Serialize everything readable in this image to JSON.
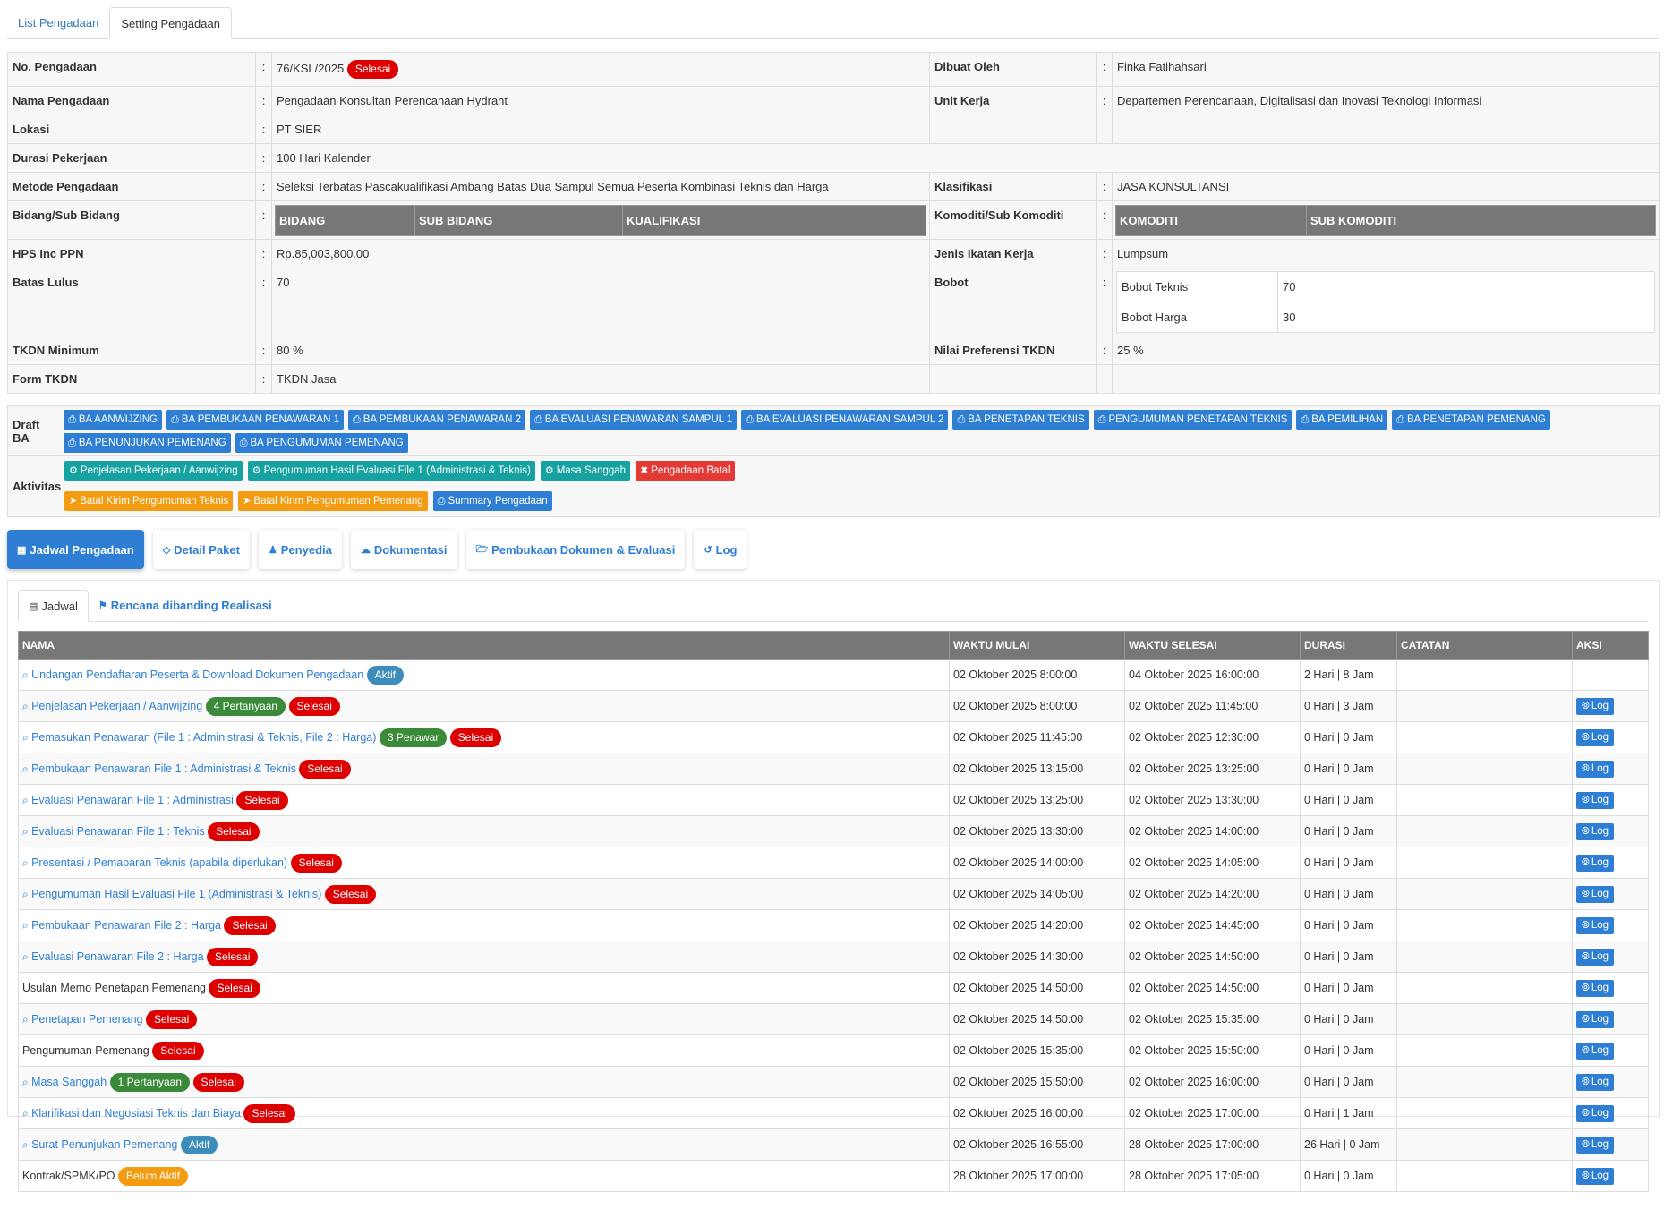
{
  "top_tabs": [
    "List Pengadaan",
    "Setting Pengadaan"
  ],
  "info": {
    "no_label": "No. Pengadaan",
    "no_value": "76/KSL/2025",
    "no_status": "Selesai",
    "dibuat_label": "Dibuat Oleh",
    "dibuat_value": "Finka Fatihahsari",
    "nama_label": "Nama Pengadaan",
    "nama_value": "Pengadaan Konsultan Perencanaan Hydrant",
    "unit_label": "Unit Kerja",
    "unit_value": "Departemen Perencanaan, Digitalisasi dan Inovasi Teknologi Informasi",
    "lokasi_label": "Lokasi",
    "lokasi_value": "PT SIER",
    "durasi_label": "Durasi Pekerjaan",
    "durasi_value": "100 Hari Kalender",
    "metode_label": "Metode Pengadaan",
    "metode_value": "Seleksi Terbatas Pascakualifikasi Ambang Batas Dua Sampul Semua Peserta Kombinasi Teknis dan Harga",
    "klasifikasi_label": "Klasifikasi",
    "klasifikasi_value": "JASA KONSULTANSI",
    "bidang_label": "Bidang/Sub Bidang",
    "bidang_cols": [
      "BIDANG",
      "SUB BIDANG",
      "KUALIFIKASI"
    ],
    "komoditi_label": "Komoditi/Sub Komoditi",
    "komoditi_cols": [
      "KOMODITI",
      "SUB KOMODITI"
    ],
    "hps_label": "HPS Inc PPN",
    "hps_value": "Rp.85,003,800.00",
    "ikatan_label": "Jenis Ikatan Kerja",
    "ikatan_value": "Lumpsum",
    "batas_label": "Batas Lulus",
    "batas_value": "70",
    "bobot_label": "Bobot",
    "bobot_teknis_label": "Bobot Teknis",
    "bobot_teknis_value": "70",
    "bobot_harga_label": "Bobot Harga",
    "bobot_harga_value": "30",
    "tkdn_min_label": "TKDN Minimum",
    "tkdn_min_value": "80 %",
    "preferensi_label": "Nilai Preferensi TKDN",
    "preferensi_value": "25 %",
    "form_tkdn_label": "Form TKDN",
    "form_tkdn_value": "TKDN Jasa",
    "colon": ":"
  },
  "draft_ba": {
    "label": "Draft BA",
    "buttons": [
      "BA AANWIJZING",
      "BA PEMBUKAAN PENAWARAN 1",
      "BA PEMBUKAAN PENAWARAN 2",
      "BA EVALUASI PENAWARAN SAMPUL 1",
      "BA EVALUASI PENAWARAN SAMPUL 2",
      "BA PENETAPAN TEKNIS",
      "PENGUMUMAN PENETAPAN TEKNIS",
      "BA PEMILIHAN",
      "BA PENETAPAN PEMENANG",
      "BA PENUNJUKAN PEMENANG",
      "BA PENGUMUMAN PEMENANG"
    ]
  },
  "aktivitas": {
    "label": "Aktivitas",
    "buttons": [
      {
        "label": "Penjelasan Pekerjaan / Aanwijzing",
        "color": "teal"
      },
      {
        "label": "Pengumuman Hasil Evaluasi File 1 (Administrasi & Teknis)",
        "color": "teal"
      },
      {
        "label": "Masa Sanggah",
        "color": "teal"
      },
      {
        "label": "Pengadaan Batal",
        "color": "red"
      },
      {
        "label": "Batal Kirim Pengumuman Teknis",
        "color": "orange"
      },
      {
        "label": "Batal Kirim Pengumuman Pemenang",
        "color": "orange"
      },
      {
        "label": "Summary Pengadaan",
        "color": "blue"
      }
    ]
  },
  "section_tabs": [
    "Jadwal Pengadaan",
    "Detail Paket",
    "Penyedia",
    "Dokumentasi",
    "Pembukaan Dokumen & Evaluasi",
    "Log"
  ],
  "sub_tabs": [
    "Jadwal",
    "Rencana dibanding Realisasi"
  ],
  "schedule": {
    "headers": [
      "NAMA",
      "WAKTU MULAI",
      "WAKTU SELESAI",
      "DURASI",
      "CATATAN",
      "AKSI"
    ],
    "log_label": "Log",
    "rows": [
      {
        "name": "Undangan Pendaftaran Peserta & Download Dokumen Pengadaan",
        "link": true,
        "badges": [
          {
            "text": "Aktif",
            "color": "blue"
          }
        ],
        "start": "02 Oktober 2025 8:00:00",
        "end": "04 Oktober 2025 16:00:00",
        "dur": "2 Hari | 8 Jam",
        "log": false
      },
      {
        "name": "Penjelasan Pekerjaan / Aanwijzing",
        "link": true,
        "badges": [
          {
            "text": "4 Pertanyaan",
            "color": "green"
          },
          {
            "text": "Selesai",
            "color": "red"
          }
        ],
        "start": "02 Oktober 2025 8:00:00",
        "end": "02 Oktober 2025 11:45:00",
        "dur": "0 Hari | 3 Jam",
        "log": true
      },
      {
        "name": "Pemasukan Penawaran (File 1 : Administrasi & Teknis, File 2 : Harga)",
        "link": true,
        "badges": [
          {
            "text": "3 Penawar",
            "color": "green"
          },
          {
            "text": "Selesai",
            "color": "red"
          }
        ],
        "start": "02 Oktober 2025 11:45:00",
        "end": "02 Oktober 2025 12:30:00",
        "dur": "0 Hari | 0 Jam",
        "log": true
      },
      {
        "name": "Pembukaan Penawaran File 1 : Administrasi & Teknis",
        "link": true,
        "badges": [
          {
            "text": "Selesai",
            "color": "red"
          }
        ],
        "start": "02 Oktober 2025 13:15:00",
        "end": "02 Oktober 2025 13:25:00",
        "dur": "0 Hari | 0 Jam",
        "log": true
      },
      {
        "name": "Evaluasi Penawaran File 1 : Administrasi",
        "link": true,
        "badges": [
          {
            "text": "Selesai",
            "color": "red"
          }
        ],
        "start": "02 Oktober 2025 13:25:00",
        "end": "02 Oktober 2025 13:30:00",
        "dur": "0 Hari | 0 Jam",
        "log": true
      },
      {
        "name": "Evaluasi Penawaran File 1 : Teknis",
        "link": true,
        "badges": [
          {
            "text": "Selesai",
            "color": "red"
          }
        ],
        "start": "02 Oktober 2025 13:30:00",
        "end": "02 Oktober 2025 14:00:00",
        "dur": "0 Hari | 0 Jam",
        "log": true
      },
      {
        "name": "Presentasi / Pemaparan Teknis (apabila diperlukan)",
        "link": true,
        "badges": [
          {
            "text": "Selesai",
            "color": "red"
          }
        ],
        "start": "02 Oktober 2025 14:00:00",
        "end": "02 Oktober 2025 14:05:00",
        "dur": "0 Hari | 0 Jam",
        "log": true
      },
      {
        "name": "Pengumuman Hasil Evaluasi File 1 (Administrasi & Teknis)",
        "link": true,
        "badges": [
          {
            "text": "Selesai",
            "color": "red"
          }
        ],
        "start": "02 Oktober 2025 14:05:00",
        "end": "02 Oktober 2025 14:20:00",
        "dur": "0 Hari | 0 Jam",
        "log": true
      },
      {
        "name": "Pembukaan Penawaran File 2 : Harga",
        "link": true,
        "badges": [
          {
            "text": "Selesai",
            "color": "red"
          }
        ],
        "start": "02 Oktober 2025 14:20:00",
        "end": "02 Oktober 2025 14:45:00",
        "dur": "0 Hari | 0 Jam",
        "log": true
      },
      {
        "name": "Evaluasi Penawaran File 2 : Harga",
        "link": true,
        "badges": [
          {
            "text": "Selesai",
            "color": "red"
          }
        ],
        "start": "02 Oktober 2025 14:30:00",
        "end": "02 Oktober 2025 14:50:00",
        "dur": "0 Hari | 0 Jam",
        "log": true
      },
      {
        "name": "Usulan Memo Penetapan Pemenang",
        "link": false,
        "badges": [
          {
            "text": "Selesai",
            "color": "red"
          }
        ],
        "start": "02 Oktober 2025 14:50:00",
        "end": "02 Oktober 2025 14:50:00",
        "dur": "0 Hari | 0 Jam",
        "log": true
      },
      {
        "name": "Penetapan Pemenang",
        "link": true,
        "badges": [
          {
            "text": "Selesai",
            "color": "red"
          }
        ],
        "start": "02 Oktober 2025 14:50:00",
        "end": "02 Oktober 2025 15:35:00",
        "dur": "0 Hari | 0 Jam",
        "log": true
      },
      {
        "name": "Pengumuman Pemenang",
        "link": false,
        "badges": [
          {
            "text": "Selesai",
            "color": "red"
          }
        ],
        "start": "02 Oktober 2025 15:35:00",
        "end": "02 Oktober 2025 15:50:00",
        "dur": "0 Hari | 0 Jam",
        "log": true
      },
      {
        "name": "Masa Sanggah",
        "link": true,
        "badges": [
          {
            "text": "1 Pertanyaan",
            "color": "green"
          },
          {
            "text": "Selesai",
            "color": "red"
          }
        ],
        "start": "02 Oktober 2025 15:50:00",
        "end": "02 Oktober 2025 16:00:00",
        "dur": "0 Hari | 0 Jam",
        "log": true
      },
      {
        "name": "Klarifikasi dan Negosiasi Teknis dan Biaya",
        "link": true,
        "badges": [
          {
            "text": "Selesai",
            "color": "red"
          }
        ],
        "start": "02 Oktober 2025 16:00:00",
        "end": "02 Oktober 2025 17:00:00",
        "dur": "0 Hari | 1 Jam",
        "log": true
      },
      {
        "name": "Surat Penunjukan Pemenang",
        "link": true,
        "badges": [
          {
            "text": "Aktif",
            "color": "blue"
          }
        ],
        "start": "02 Oktober 2025 16:55:00",
        "end": "28 Oktober 2025 17:00:00",
        "dur": "26 Hari | 0 Jam",
        "log": true
      },
      {
        "name": "Kontrak/SPMK/PO",
        "link": false,
        "badges": [
          {
            "text": "Belum Aktif",
            "color": "orange"
          }
        ],
        "start": "28 Oktober 2025 17:00:00",
        "end": "28 Oktober 2025 17:05:00",
        "dur": "0 Hari | 0 Jam",
        "log": true
      }
    ]
  }
}
